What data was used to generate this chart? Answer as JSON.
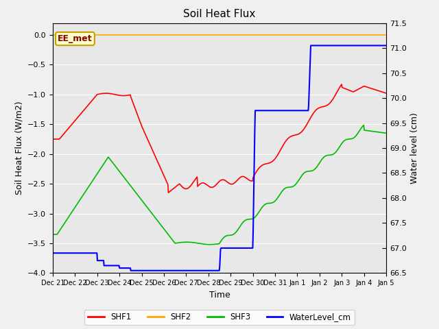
{
  "title": "Soil Heat Flux",
  "xlabel": "Time",
  "ylabel_left": "Soil Heat Flux (W/m2)",
  "ylabel_right": "Water level (cm)",
  "background_color": "#f0f0f0",
  "plot_bg_color": "#e8e8e8",
  "ylim_left": [
    -4.0,
    0.2
  ],
  "ylim_right": [
    66.5,
    71.5
  ],
  "yticks_left": [
    0.0,
    -0.5,
    -1.0,
    -1.5,
    -2.0,
    -2.5,
    -3.0,
    -3.5,
    -4.0
  ],
  "yticks_right": [
    66.5,
    67.0,
    67.5,
    68.0,
    68.5,
    69.0,
    69.5,
    70.0,
    70.5,
    71.0,
    71.5
  ],
  "annotation_text": "EE_met",
  "annotation_color": "#8b0000",
  "annotation_bg": "#ffffcc",
  "annotation_border": "#c8a000",
  "shf2_color": "#ffa500",
  "shf1_color": "#ff0000",
  "shf3_color": "#00bb00",
  "wl_color": "#0000ff",
  "legend_labels": [
    "SHF1",
    "SHF2",
    "SHF3",
    "WaterLevel_cm"
  ],
  "x_tick_labels": [
    "Dec 21",
    "Dec 22",
    "Dec 23",
    "Dec 24",
    "Dec 25",
    "Dec 26",
    "Dec 27",
    "Dec 28",
    "Dec 29",
    "Dec 30",
    "Dec 31",
    "Jan 1",
    "Jan 2",
    "Jan 3",
    "Jan 4",
    "Jan 5"
  ],
  "figsize": [
    6.4,
    4.8
  ],
  "dpi": 100
}
